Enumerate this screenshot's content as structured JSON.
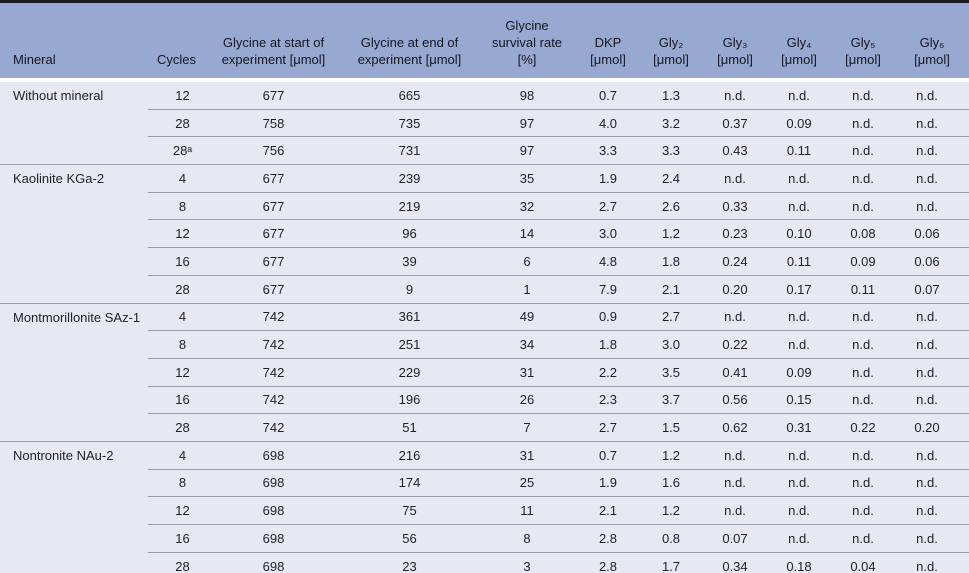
{
  "colors": {
    "header_bg": "#97a9d1",
    "row_bg": "#e6e9f3",
    "frame": "#1b1b26",
    "separator": "#9a9ca6"
  },
  "table": {
    "columns": [
      {
        "id": "mineral",
        "lines": [
          "Mineral"
        ]
      },
      {
        "id": "cycles",
        "lines": [
          "Cycles"
        ]
      },
      {
        "id": "glycine-start",
        "lines": [
          "Glycine at start of",
          "experiment [μmol]"
        ]
      },
      {
        "id": "glycine-end",
        "lines": [
          "Glycine at end of",
          "experiment [μmol]"
        ]
      },
      {
        "id": "survival-rate",
        "lines": [
          "Glycine",
          "survival rate",
          "[%]"
        ]
      },
      {
        "id": "dkp",
        "lines": [
          "DKP",
          "[μmol]"
        ]
      },
      {
        "id": "gly2",
        "lines": [
          "Gly₂",
          "[μmol]"
        ]
      },
      {
        "id": "gly3",
        "lines": [
          "Gly₃",
          "[μmol]"
        ]
      },
      {
        "id": "gly4",
        "lines": [
          "Gly₄",
          "[μmol]"
        ]
      },
      {
        "id": "gly5",
        "lines": [
          "Gly₅",
          "[μmol]"
        ]
      },
      {
        "id": "gly6",
        "lines": [
          "Gly₆",
          "[μmol]"
        ]
      }
    ],
    "groups": [
      {
        "mineral": "Without mineral",
        "rows": [
          [
            "12",
            "677",
            "665",
            "98",
            "0.7",
            "1.3",
            "n.d.",
            "n.d.",
            "n.d.",
            "n.d."
          ],
          [
            "28",
            "758",
            "735",
            "97",
            "4.0",
            "3.2",
            "0.37",
            "0.09",
            "n.d.",
            "n.d."
          ],
          [
            "28ᵃ",
            "756",
            "731",
            "97",
            "3.3",
            "3.3",
            "0.43",
            "0.11",
            "n.d.",
            "n.d."
          ]
        ]
      },
      {
        "mineral": "Kaolinite KGa-2",
        "rows": [
          [
            "4",
            "677",
            "239",
            "35",
            "1.9",
            "2.4",
            "n.d.",
            "n.d.",
            "n.d.",
            "n.d."
          ],
          [
            "8",
            "677",
            "219",
            "32",
            "2.7",
            "2.6",
            "0.33",
            "n.d.",
            "n.d.",
            "n.d."
          ],
          [
            "12",
            "677",
            "96",
            "14",
            "3.0",
            "1.2",
            "0.23",
            "0.10",
            "0.08",
            "0.06"
          ],
          [
            "16",
            "677",
            "39",
            "6",
            "4.8",
            "1.8",
            "0.24",
            "0.11",
            "0.09",
            "0.06"
          ],
          [
            "28",
            "677",
            "9",
            "1",
            "7.9",
            "2.1",
            "0.20",
            "0.17",
            "0.11",
            "0.07"
          ]
        ]
      },
      {
        "mineral": "Montmorillonite SAz-1",
        "rows": [
          [
            "4",
            "742",
            "361",
            "49",
            "0.9",
            "2.7",
            "n.d.",
            "n.d.",
            "n.d.",
            "n.d."
          ],
          [
            "8",
            "742",
            "251",
            "34",
            "1.8",
            "3.0",
            "0.22",
            "n.d.",
            "n.d.",
            "n.d."
          ],
          [
            "12",
            "742",
            "229",
            "31",
            "2.2",
            "3.5",
            "0.41",
            "0.09",
            "n.d.",
            "n.d."
          ],
          [
            "16",
            "742",
            "196",
            "26",
            "2.3",
            "3.7",
            "0.56",
            "0.15",
            "n.d.",
            "n.d."
          ],
          [
            "28",
            "742",
            "51",
            "7",
            "2.7",
            "1.5",
            "0.62",
            "0.31",
            "0.22",
            "0.20"
          ]
        ]
      },
      {
        "mineral": "Nontronite NAu-2",
        "rows": [
          [
            "4",
            "698",
            "216",
            "31",
            "0.7",
            "1.2",
            "n.d.",
            "n.d.",
            "n.d.",
            "n.d."
          ],
          [
            "8",
            "698",
            "174",
            "25",
            "1.9",
            "1.6",
            "n.d.",
            "n.d.",
            "n.d.",
            "n.d."
          ],
          [
            "12",
            "698",
            "75",
            "11",
            "2.1",
            "1.2",
            "n.d.",
            "n.d.",
            "n.d.",
            "n.d."
          ],
          [
            "16",
            "698",
            "56",
            "8",
            "2.8",
            "0.8",
            "0.07",
            "n.d.",
            "n.d.",
            "n.d."
          ],
          [
            "28",
            "698",
            "23",
            "3",
            "2.8",
            "1.7",
            "0.34",
            "0.18",
            "0.04",
            "n.d."
          ]
        ]
      }
    ]
  }
}
